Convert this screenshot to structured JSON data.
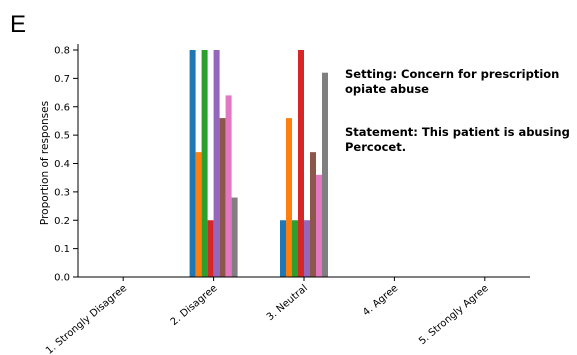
{
  "panel_label": "E",
  "chart_data": {
    "type": "bar",
    "ylabel": "Proportion of responses",
    "xlabel": "",
    "ylim": [
      0,
      0.85
    ],
    "yticks": [
      "0.0",
      "0.1",
      "0.2",
      "0.3",
      "0.4",
      "0.5",
      "0.6",
      "0.7",
      "0.8"
    ],
    "categories": [
      "1. Strongly Disagree",
      "2. Disagree",
      "3. Neutral",
      "4. Agree",
      "5. Strongly Agree"
    ],
    "series": [
      {
        "color": "#1f77b4",
        "values": [
          0,
          0.8,
          0.2,
          0,
          0
        ]
      },
      {
        "color": "#ff7f0e",
        "values": [
          0,
          0.44,
          0.56,
          0,
          0
        ]
      },
      {
        "color": "#2ca02c",
        "values": [
          0,
          0.8,
          0.2,
          0,
          0
        ]
      },
      {
        "color": "#d62728",
        "values": [
          0,
          0.2,
          0.8,
          0,
          0
        ]
      },
      {
        "color": "#9467bd",
        "values": [
          0,
          0.8,
          0.2,
          0,
          0
        ]
      },
      {
        "color": "#8c564b",
        "values": [
          0,
          0.56,
          0.44,
          0,
          0
        ]
      },
      {
        "color": "#e377c2",
        "values": [
          0,
          0.64,
          0.36,
          0,
          0
        ]
      },
      {
        "color": "#7f7f7f",
        "values": [
          0,
          0.28,
          0.72,
          0,
          0
        ]
      }
    ],
    "annotations": {
      "setting": [
        "Setting: Concern for prescription",
        "opiate abuse"
      ],
      "statement": [
        "Statement: This patient is abusing",
        "Percocet."
      ]
    },
    "grid": false,
    "legend": "none"
  }
}
